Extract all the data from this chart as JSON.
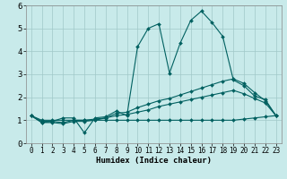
{
  "xlabel": "Humidex (Indice chaleur)",
  "background_color": "#c8eaea",
  "grid_color": "#a0c8c8",
  "line_color": "#006060",
  "xlim": [
    -0.5,
    23.5
  ],
  "ylim": [
    0,
    6
  ],
  "x_ticks": [
    0,
    1,
    2,
    3,
    4,
    5,
    6,
    7,
    8,
    9,
    10,
    11,
    12,
    13,
    14,
    15,
    16,
    17,
    18,
    19,
    20,
    21,
    22,
    23
  ],
  "y_ticks": [
    0,
    1,
    2,
    3,
    4,
    5,
    6
  ],
  "series": [
    {
      "x": [
        0,
        1,
        2,
        3,
        4,
        5,
        6,
        7,
        8,
        9,
        10,
        11,
        12,
        13,
        14,
        15,
        16,
        17,
        18,
        19,
        20,
        21,
        22,
        23
      ],
      "y": [
        1.2,
        0.9,
        0.95,
        1.1,
        1.1,
        0.45,
        1.1,
        1.15,
        1.4,
        1.2,
        4.2,
        5.0,
        5.2,
        3.05,
        4.35,
        5.35,
        5.75,
        5.25,
        4.65,
        2.75,
        2.5,
        2.05,
        1.9,
        1.2
      ]
    },
    {
      "x": [
        0,
        1,
        2,
        3,
        4,
        5,
        6,
        7,
        8,
        9,
        10,
        11,
        12,
        13,
        14,
        15,
        16,
        17,
        18,
        19,
        20,
        21,
        22,
        23
      ],
      "y": [
        1.2,
        0.9,
        0.9,
        0.85,
        0.95,
        0.95,
        1.0,
        1.1,
        1.3,
        1.35,
        1.55,
        1.7,
        1.85,
        1.95,
        2.1,
        2.25,
        2.4,
        2.55,
        2.7,
        2.8,
        2.6,
        2.2,
        1.85,
        1.2
      ]
    },
    {
      "x": [
        0,
        1,
        2,
        3,
        4,
        5,
        6,
        7,
        8,
        9,
        10,
        11,
        12,
        13,
        14,
        15,
        16,
        17,
        18,
        19,
        20,
        21,
        22,
        23
      ],
      "y": [
        1.2,
        0.95,
        0.95,
        0.9,
        1.0,
        1.0,
        1.05,
        1.1,
        1.2,
        1.25,
        1.35,
        1.45,
        1.6,
        1.7,
        1.8,
        1.9,
        2.0,
        2.1,
        2.2,
        2.3,
        2.15,
        1.95,
        1.75,
        1.2
      ]
    },
    {
      "x": [
        0,
        1,
        2,
        3,
        4,
        5,
        6,
        7,
        8,
        9,
        10,
        11,
        12,
        13,
        14,
        15,
        16,
        17,
        18,
        19,
        20,
        21,
        22,
        23
      ],
      "y": [
        1.2,
        1.0,
        1.0,
        1.0,
        1.0,
        1.0,
        1.0,
        1.0,
        1.0,
        1.0,
        1.0,
        1.0,
        1.0,
        1.0,
        1.0,
        1.0,
        1.0,
        1.0,
        1.0,
        1.0,
        1.05,
        1.1,
        1.15,
        1.2
      ]
    }
  ]
}
